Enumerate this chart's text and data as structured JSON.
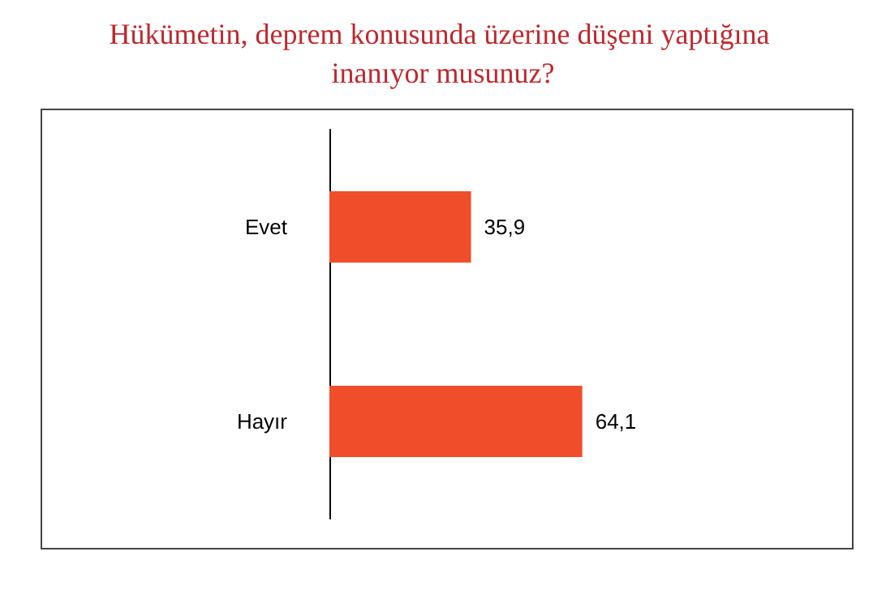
{
  "chart_data": {
    "type": "bar",
    "orientation": "horizontal",
    "title": "Hükümetin, deprem konusunda üzerine düşeni yaptığına inanıyor musunuz?",
    "categories": [
      "Evet",
      "Hayır"
    ],
    "values": [
      35.9,
      64.1
    ],
    "value_labels": [
      "35,9",
      "64,1"
    ],
    "color": "#f04e2a"
  }
}
